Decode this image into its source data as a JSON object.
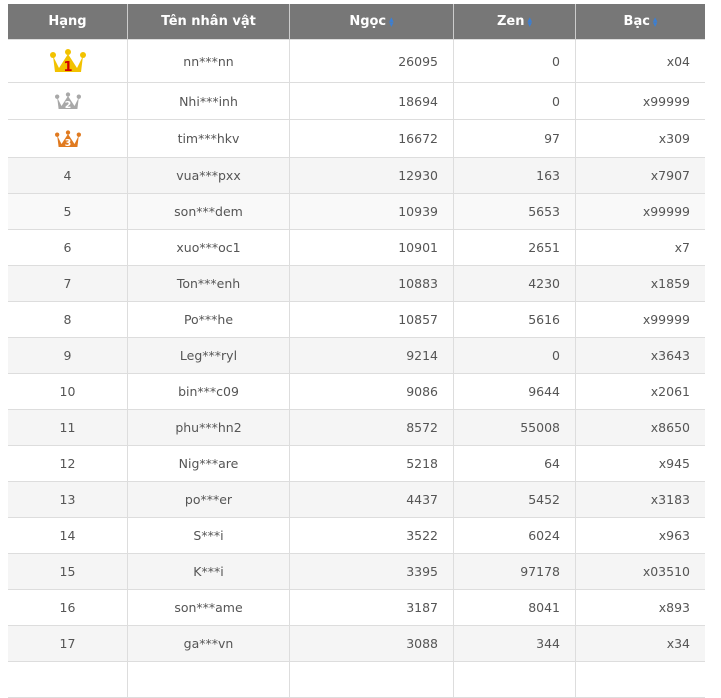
{
  "headers": {
    "rank": "Hạng",
    "name": "Tên nhân vật",
    "ngoc": "Ngọc",
    "zen": "Zen",
    "bac": "Bạc",
    "sort_icon": "sort-icon"
  },
  "crowns": [
    {
      "label": "1",
      "color": "#f2c200",
      "num_color": "#d00000"
    },
    {
      "label": "2",
      "color": "#a8a8a8",
      "num_color": "#ffffff"
    },
    {
      "label": "3",
      "color": "#e07a20",
      "num_color": "#ffffff"
    }
  ],
  "rows": [
    {
      "rank": "1",
      "name": "nn***nn",
      "ngoc": "26095",
      "zen": "0",
      "bac": "x04"
    },
    {
      "rank": "2",
      "name": "Nhi***inh",
      "ngoc": "18694",
      "zen": "0",
      "bac": "x99999"
    },
    {
      "rank": "3",
      "name": "tim***hkv",
      "ngoc": "16672",
      "zen": "97",
      "bac": "x309"
    },
    {
      "rank": "4",
      "name": "vua***pxx",
      "ngoc": "12930",
      "zen": "163",
      "bac": "x7907"
    },
    {
      "rank": "5",
      "name": "son***dem",
      "ngoc": "10939",
      "zen": "5653",
      "bac": "x99999"
    },
    {
      "rank": "6",
      "name": "xuo***oc1",
      "ngoc": "10901",
      "zen": "2651",
      "bac": "x7"
    },
    {
      "rank": "7",
      "name": "Ton***enh",
      "ngoc": "10883",
      "zen": "4230",
      "bac": "x1859"
    },
    {
      "rank": "8",
      "name": "Po***he",
      "ngoc": "10857",
      "zen": "5616",
      "bac": "x99999"
    },
    {
      "rank": "9",
      "name": "Leg***ryl",
      "ngoc": "9214",
      "zen": "0",
      "bac": "x3643"
    },
    {
      "rank": "10",
      "name": "bin***c09",
      "ngoc": "9086",
      "zen": "9644",
      "bac": "x2061"
    },
    {
      "rank": "11",
      "name": "phu***hn2",
      "ngoc": "8572",
      "zen": "55008",
      "bac": "x8650"
    },
    {
      "rank": "12",
      "name": "Nig***are",
      "ngoc": "5218",
      "zen": "64",
      "bac": "x945"
    },
    {
      "rank": "13",
      "name": "po***er",
      "ngoc": "4437",
      "zen": "5452",
      "bac": "x3183"
    },
    {
      "rank": "14",
      "name": "S***i",
      "ngoc": "3522",
      "zen": "6024",
      "bac": "x963"
    },
    {
      "rank": "15",
      "name": "K***i",
      "ngoc": "3395",
      "zen": "97178",
      "bac": "x03510"
    },
    {
      "rank": "16",
      "name": "son***ame",
      "ngoc": "3187",
      "zen": "8041",
      "bac": "x893"
    },
    {
      "rank": "17",
      "name": "ga***vn",
      "ngoc": "3088",
      "zen": "344",
      "bac": "x34"
    }
  ]
}
